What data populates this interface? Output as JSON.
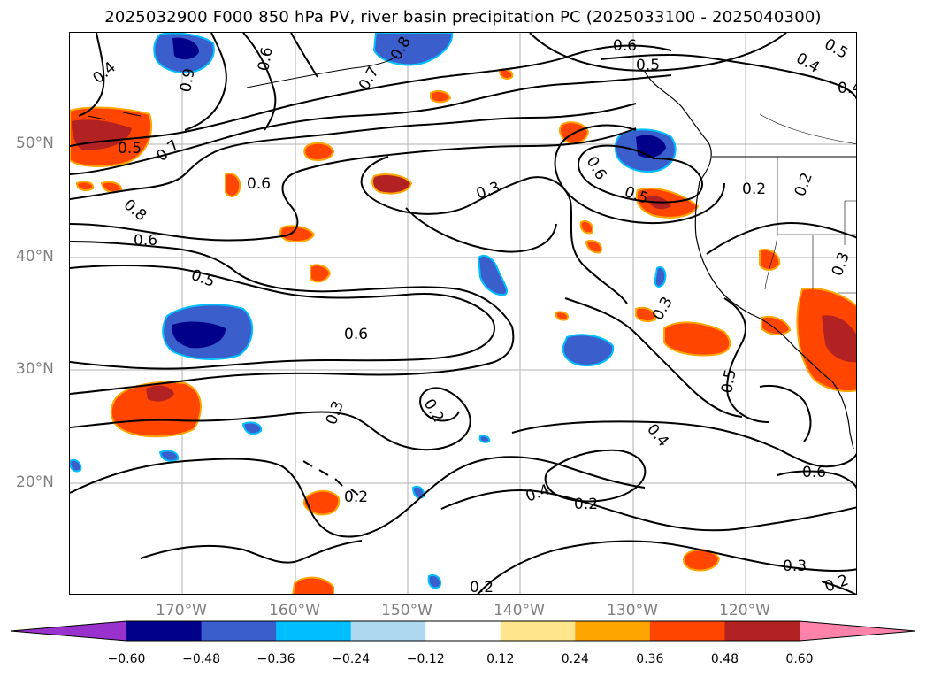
{
  "title": "2025032900 F000 850 hPa PV, river basin precipitation PC (2025033100 - 2025040300)",
  "lat_labels": [
    "50°N",
    "40°N",
    "30°N",
    "20°N"
  ],
  "lon_labels": [
    "170°W",
    "160°W",
    "150°W",
    "140°W",
    "130°W",
    "120°W"
  ],
  "colorbar": {
    "ticks": [
      "−0.60",
      "−0.48",
      "−0.36",
      "−0.24",
      "−0.12",
      "0.12",
      "0.24",
      "0.36",
      "0.48",
      "0.60"
    ],
    "colors": [
      "#9932cc",
      "#00008b",
      "#3a5fcd",
      "#00bfff",
      "#add8f0",
      "#ffffff",
      "#ffe68c",
      "#ffa500",
      "#ff4500",
      "#b22222",
      "#ff82ab"
    ]
  },
  "contour_labels": {
    "c1": "0.4",
    "c2": "0.5",
    "c3": "0.6",
    "c4": "0.7",
    "c5": "0.8",
    "c6": "0.6",
    "c7": "0.5",
    "c8": "0.6",
    "c9": "0.3",
    "c10": "0.3",
    "c11": "0.2",
    "c12": "0.2",
    "c13": "0.4",
    "c14": "0.2",
    "c15": "0.4",
    "c16": "0.5",
    "c17": "0.3",
    "c18": "0.6",
    "c19": "0.3",
    "c20": "0.2",
    "c21": "0.2",
    "c22": "0.6",
    "c23": "0.5",
    "c24": "0.4",
    "c25": "0.6",
    "c26": "0.5",
    "c27": "0.2",
    "c28": "0.2",
    "c29": "0.3",
    "c30": "0.4",
    "c31": "0.9",
    "c32": "0.8",
    "c33": "0.5",
    "c34": "0.7",
    "c35": "0.6"
  }
}
